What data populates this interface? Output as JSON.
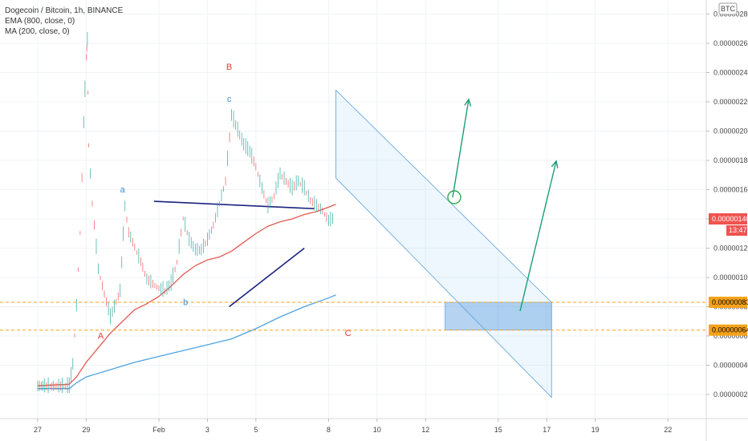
{
  "legend": {
    "title": "Dogecoin / Bitcoin, 1h, BINANCE",
    "ema": "EMA (800, close, 0)",
    "ma": "MA (200, close, 0)"
  },
  "currency_badge": "BTC",
  "chart_data": {
    "type": "line",
    "title": "Dogecoin / Bitcoin, 1h, BINANCE",
    "x_ticks": [
      "27",
      "29",
      "Feb",
      "3",
      "5",
      "8",
      "10",
      "12",
      "15",
      "17",
      "19",
      "22"
    ],
    "y_ticks": [
      "0.00000020",
      "0.00000040",
      "0.00000060",
      "0.00000080",
      "0.00000100",
      "0.00000120",
      "0.00000140",
      "0.00000160",
      "0.00000180",
      "0.00000200",
      "0.00000220",
      "0.00000240",
      "0.00000260",
      "0.00000280"
    ],
    "ylim": [
      1e-07,
      2.88e-06
    ],
    "price": {
      "name": "DOGE/BTC",
      "x": [
        0,
        1.3,
        1.45,
        1.6,
        1.75,
        1.9,
        2.0,
        2.05,
        2.1,
        2.25,
        2.5,
        2.75,
        3.0,
        3.4,
        3.6,
        3.75,
        4.0,
        4.25,
        4.5,
        4.75,
        5.0,
        5.25,
        5.5,
        5.75,
        6.0,
        6.25,
        6.5,
        6.75,
        7.0,
        7.25,
        7.5,
        7.75,
        8.0,
        8.25,
        8.5,
        8.75,
        9.0,
        9.25,
        9.5,
        9.75,
        10.0,
        10.25,
        10.5,
        10.75,
        11.0,
        11.25,
        11.5,
        11.75,
        12.0,
        12.25
      ],
      "close": [
        2.5e-07,
        2.5e-07,
        4e-07,
        8e-07,
        1.3e-06,
        2.05e-06,
        2.5e-06,
        2.62e-06,
        1.9e-06,
        1.5e-06,
        1.05e-06,
        8.8e-07,
        7.2e-07,
        9e-07,
        1.48e-06,
        1.3e-06,
        1.2e-06,
        1.1e-06,
        9.8e-07,
        9.5e-07,
        9.2e-07,
        9e-07,
        9.5e-07,
        1.1e-06,
        1.4e-06,
        1.25e-06,
        1.18e-06,
        1.18e-06,
        1.25e-06,
        1.35e-06,
        1.5e-06,
        1.65e-06,
        2.1e-06,
        2e-06,
        1.9e-06,
        1.85e-06,
        1.75e-06,
        1.6e-06,
        1.48e-06,
        1.55e-06,
        1.7e-06,
        1.65e-06,
        1.6e-06,
        1.65e-06,
        1.6e-06,
        1.52e-06,
        1.48e-06,
        1.45e-06,
        1.38e-06,
        1.4e-06
      ]
    },
    "series": [
      {
        "name": "EMA (800, close, 0)",
        "color": "#e25b52",
        "x": [
          0,
          1.3,
          1.6,
          2.0,
          2.5,
          3.0,
          3.5,
          4.0,
          4.5,
          5.0,
          5.5,
          6.0,
          6.5,
          7.0,
          7.5,
          8.0,
          8.5,
          9.0,
          9.5,
          10.0,
          10.5,
          11.0,
          11.5,
          12.0,
          12.3
        ],
        "values": [
          2.6e-07,
          2.7e-07,
          3.2e-07,
          4.2e-07,
          5.2e-07,
          6.2e-07,
          7e-07,
          7.8e-07,
          8.2e-07,
          8.7e-07,
          9.4e-07,
          1.02e-06,
          1.08e-06,
          1.12e-06,
          1.14e-06,
          1.18e-06,
          1.24e-06,
          1.3e-06,
          1.35e-06,
          1.38e-06,
          1.4e-06,
          1.43e-06,
          1.45e-06,
          1.48e-06,
          1.5e-06
        ]
      },
      {
        "name": "MA (200, close, 0)",
        "color": "#4ea3e0",
        "x": [
          0,
          1.3,
          1.6,
          2.0,
          3.0,
          4.0,
          5.0,
          6.0,
          7.0,
          8.0,
          9.0,
          10.0,
          11.0,
          12.0,
          12.3
        ],
        "values": [
          2.4e-07,
          2.4e-07,
          2.8e-07,
          3.2e-07,
          3.7e-07,
          4.2e-07,
          4.6e-07,
          5e-07,
          5.4e-07,
          5.8e-07,
          6.5e-07,
          7.3e-07,
          8e-07,
          8.6e-07,
          8.8e-07
        ]
      }
    ],
    "price_tags": [
      {
        "label": "0.00000140",
        "value": 1.4e-06,
        "color": "#ef5350"
      },
      {
        "label": "13:47",
        "color": "#ef5350"
      },
      {
        "label": "0.00000083",
        "value": 8.3e-07,
        "color": "#f7a21b"
      },
      {
        "label": "0.00000064",
        "value": 6.4e-07,
        "color": "#f7a21b"
      }
    ],
    "annotations": {
      "wave_labels": [
        {
          "text": "A",
          "x": 2.6,
          "y": 5.8e-07,
          "color": "#e53935"
        },
        {
          "text": "a",
          "x": 3.5,
          "y": 1.58e-06,
          "color": "#3d8fd1"
        },
        {
          "text": "b",
          "x": 6.1,
          "y": 8.1e-07,
          "color": "#3d8fd1"
        },
        {
          "text": "B",
          "x": 7.9,
          "y": 2.42e-06,
          "color": "#e53935"
        },
        {
          "text": "c",
          "x": 7.9,
          "y": 2.2e-06,
          "color": "#3d8fd1"
        },
        {
          "text": "C",
          "x": 12.8,
          "y": 6e-07,
          "color": "#e53935"
        }
      ],
      "horizontal_levels": [
        8.3e-07,
        6.4e-07
      ]
    }
  }
}
